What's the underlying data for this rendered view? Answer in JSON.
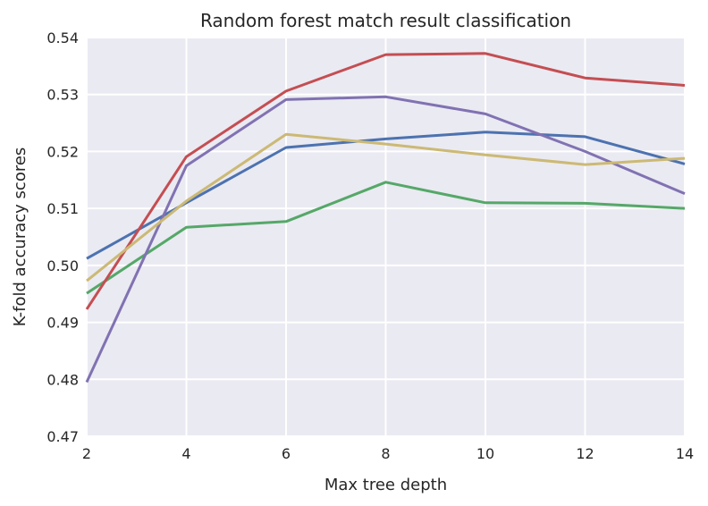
{
  "chart_data": {
    "type": "line",
    "title": "Random forest match result classification",
    "xlabel": "Max tree depth",
    "ylabel": "K-fold accuracy scores",
    "x": [
      2,
      4,
      6,
      8,
      10,
      12,
      14
    ],
    "xlim": [
      2,
      14
    ],
    "ylim": [
      0.47,
      0.54
    ],
    "xticks": [
      "2",
      "4",
      "6",
      "8",
      "10",
      "12",
      "14"
    ],
    "yticks": [
      "0.47",
      "0.48",
      "0.49",
      "0.50",
      "0.51",
      "0.52",
      "0.53",
      "0.54"
    ],
    "grid": true,
    "background": "#eaeaf2",
    "series": [
      {
        "color": "#4c72b0",
        "values": [
          0.5012,
          0.511,
          0.5207,
          0.5222,
          0.5234,
          0.5226,
          0.5178
        ]
      },
      {
        "color": "#55a868",
        "values": [
          0.4951,
          0.5067,
          0.5077,
          0.5146,
          0.511,
          0.5109,
          0.51
        ]
      },
      {
        "color": "#c44e52",
        "values": [
          0.4923,
          0.5191,
          0.5306,
          0.537,
          0.5372,
          0.5329,
          0.5316
        ]
      },
      {
        "color": "#8172b2",
        "values": [
          0.4795,
          0.5175,
          0.5291,
          0.5296,
          0.5266,
          0.52,
          0.5126
        ]
      },
      {
        "color": "#ccb974",
        "values": [
          0.4973,
          0.5113,
          0.523,
          0.5213,
          0.5194,
          0.5177,
          0.5188
        ]
      }
    ]
  }
}
